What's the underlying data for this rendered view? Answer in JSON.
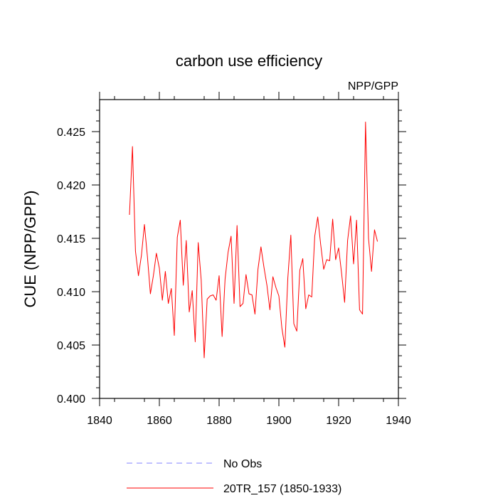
{
  "chart_data": {
    "type": "line",
    "title": "carbon use efficiency",
    "corner_label": "NPP/GPP",
    "ylabel": "CUE  (NPP/GPP)",
    "xlabel": "",
    "xlim": [
      1840,
      1940
    ],
    "ylim": [
      0.4,
      0.428
    ],
    "grid": false,
    "xticks": [
      1840,
      1860,
      1880,
      1900,
      1920,
      1940
    ],
    "xtick_labels": [
      "1840",
      "1860",
      "1880",
      "1900",
      "1920",
      "1940"
    ],
    "yticks": [
      0.4,
      0.405,
      0.41,
      0.415,
      0.42,
      0.425
    ],
    "ytick_labels": [
      "0.400",
      "0.405",
      "0.410",
      "0.415",
      "0.420",
      "0.425"
    ],
    "legend_position": "bottom",
    "legend": [
      {
        "label": "No Obs",
        "color": "#8080ff",
        "style": "dashed"
      },
      {
        "label": "20TR_157 (1850-1933)",
        "color": "#ff0000",
        "style": "solid"
      }
    ],
    "series": [
      {
        "name": "20TR_157 (1850-1933)",
        "color": "#ff0000",
        "x": [
          1850,
          1851,
          1852,
          1853,
          1854,
          1855,
          1856,
          1857,
          1858,
          1859,
          1860,
          1861,
          1862,
          1863,
          1864,
          1865,
          1866,
          1867,
          1868,
          1869,
          1870,
          1871,
          1872,
          1873,
          1874,
          1875,
          1876,
          1877,
          1878,
          1879,
          1880,
          1881,
          1882,
          1883,
          1884,
          1885,
          1886,
          1887,
          1888,
          1889,
          1890,
          1891,
          1892,
          1893,
          1894,
          1895,
          1896,
          1897,
          1898,
          1899,
          1900,
          1901,
          1902,
          1903,
          1904,
          1905,
          1906,
          1907,
          1908,
          1909,
          1910,
          1911,
          1912,
          1913,
          1914,
          1915,
          1916,
          1917,
          1918,
          1919,
          1920,
          1921,
          1922,
          1923,
          1924,
          1925,
          1926,
          1927,
          1928,
          1929,
          1930,
          1931,
          1932,
          1933
        ],
        "y": [
          0.4172,
          0.4236,
          0.4138,
          0.4115,
          0.4134,
          0.4163,
          0.4133,
          0.4098,
          0.4115,
          0.4136,
          0.4122,
          0.4092,
          0.4119,
          0.4089,
          0.4103,
          0.4059,
          0.4151,
          0.4167,
          0.4106,
          0.4148,
          0.4081,
          0.4101,
          0.4053,
          0.4146,
          0.4111,
          0.4038,
          0.4093,
          0.4096,
          0.4097,
          0.4092,
          0.4115,
          0.4058,
          0.4112,
          0.4137,
          0.4152,
          0.4089,
          0.4162,
          0.4086,
          0.4089,
          0.4116,
          0.4098,
          0.4097,
          0.4079,
          0.4121,
          0.4142,
          0.4123,
          0.4106,
          0.4083,
          0.4114,
          0.4104,
          0.4096,
          0.4066,
          0.4048,
          0.4113,
          0.4153,
          0.407,
          0.4063,
          0.412,
          0.4131,
          0.4084,
          0.4097,
          0.4095,
          0.4152,
          0.417,
          0.4144,
          0.4121,
          0.413,
          0.4129,
          0.4168,
          0.413,
          0.4141,
          0.4117,
          0.409,
          0.4148,
          0.4171,
          0.4126,
          0.4167,
          0.4083,
          0.4079,
          0.4259,
          0.415,
          0.4119,
          0.4158,
          0.4147
        ]
      }
    ]
  }
}
